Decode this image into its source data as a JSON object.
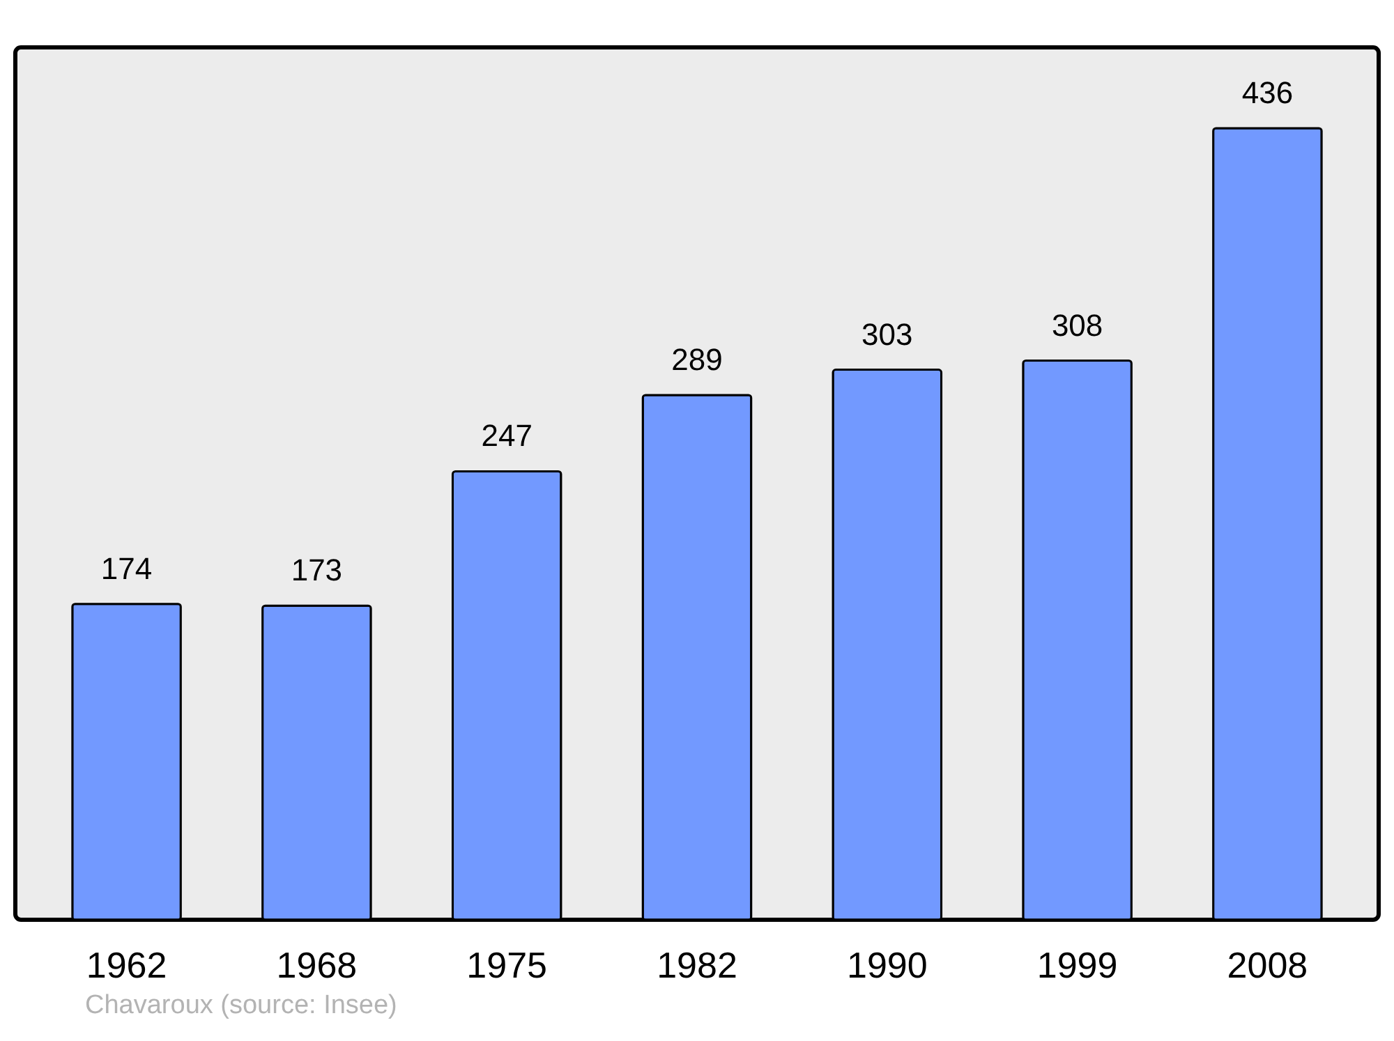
{
  "chart_data": {
    "type": "bar",
    "categories": [
      "1962",
      "1968",
      "1975",
      "1982",
      "1990",
      "1999",
      "2008"
    ],
    "values": [
      174,
      173,
      247,
      289,
      303,
      308,
      436
    ],
    "color": "#7299ff",
    "data_labels": true,
    "annotations": [
      "Chavaroux    (source: Insee)"
    ]
  }
}
